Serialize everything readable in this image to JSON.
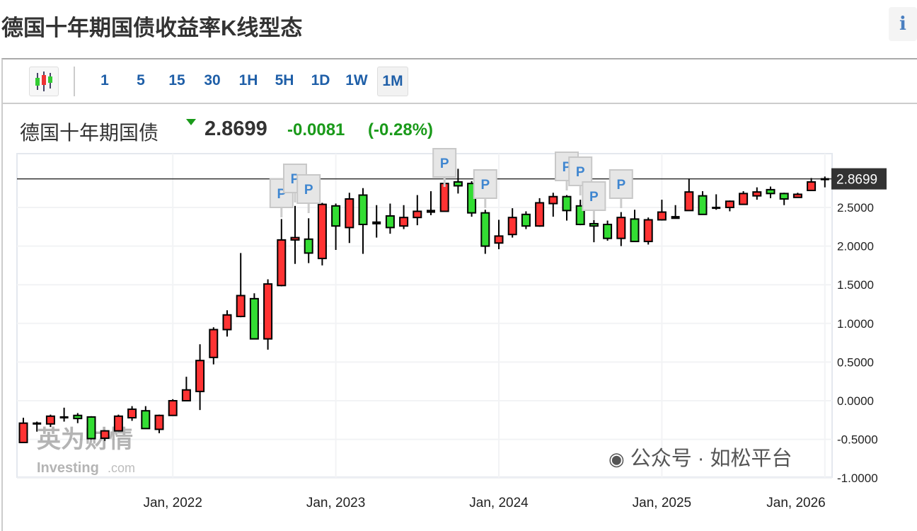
{
  "header": {
    "title": "德国十年期国债收益率K线型态",
    "info_icon": "info-icon"
  },
  "toolbar": {
    "chart_type_icon": "candlestick-icon",
    "timeframes": [
      "1",
      "5",
      "15",
      "30",
      "1H",
      "5H",
      "1D",
      "1W",
      "1M"
    ],
    "active_timeframe": "1M"
  },
  "quote": {
    "name": "德国十年期国债",
    "direction_icon": "triangle-down-icon",
    "price": "2.8699",
    "change": "-0.0081",
    "change_pct": "(-0.28%)"
  },
  "watermark": {
    "logo": "英为财情 Investing.com",
    "overlay_text": "公众号 · 如松平台"
  },
  "colors": {
    "up": "#ff3333",
    "down": "#33dd33",
    "change": "#1a9a1a",
    "timeframe": "#1f5fa8",
    "price_tag": "#333333"
  },
  "chart_data": {
    "type": "candlestick",
    "interval": "monthly",
    "ylim": [
      -1.0,
      3.2
    ],
    "yticks": [
      "2.5000",
      "2.0000",
      "1.5000",
      "1.0000",
      "0.5000",
      "0.0000",
      "-0.5000",
      "-1.0000"
    ],
    "ytick_values": [
      2.5,
      2.0,
      1.5,
      1.0,
      0.5,
      0.0,
      -0.5,
      -1.0
    ],
    "xticks": [
      "Jan, 2022",
      "Jan, 2023",
      "Jan, 2024",
      "Jan, 2025",
      "Jan, 2026"
    ],
    "xtick_months": [
      "2022-01",
      "2023-01",
      "2024-01",
      "2025-01",
      "2026-01"
    ],
    "grid": true,
    "last_price": 2.8699,
    "last_price_label": "2.8699",
    "marker_label": "P",
    "marker_months": [
      "2022-09",
      "2022-10",
      "2022-11",
      "2023-09",
      "2023-12",
      "2024-06",
      "2024-07",
      "2024-08",
      "2024-10"
    ],
    "months": [
      "2021-02",
      "2021-03",
      "2021-04",
      "2021-05",
      "2021-06",
      "2021-07",
      "2021-08",
      "2021-09",
      "2021-10",
      "2021-11",
      "2021-12",
      "2022-01",
      "2022-02",
      "2022-03",
      "2022-04",
      "2022-05",
      "2022-06",
      "2022-07",
      "2022-08",
      "2022-09",
      "2022-10",
      "2022-11",
      "2022-12",
      "2023-01",
      "2023-02",
      "2023-03",
      "2023-04",
      "2023-05",
      "2023-06",
      "2023-07",
      "2023-08",
      "2023-09",
      "2023-10",
      "2023-11",
      "2023-12",
      "2024-01",
      "2024-02",
      "2024-03",
      "2024-04",
      "2024-05",
      "2024-06",
      "2024-07",
      "2024-08",
      "2024-09",
      "2024-10",
      "2024-11",
      "2024-12",
      "2025-01",
      "2025-02",
      "2025-03",
      "2025-04",
      "2025-05",
      "2025-06",
      "2025-07",
      "2025-08",
      "2025-09",
      "2025-10",
      "2025-11",
      "2025-12",
      "2026-01"
    ],
    "ohlc": [
      [
        -0.54,
        -0.22,
        -0.54,
        -0.29
      ],
      [
        -0.29,
        -0.27,
        -0.4,
        -0.3
      ],
      [
        -0.3,
        -0.18,
        -0.34,
        -0.2
      ],
      [
        -0.21,
        -0.09,
        -0.27,
        -0.22
      ],
      [
        -0.19,
        -0.16,
        -0.29,
        -0.23
      ],
      [
        -0.21,
        -0.2,
        -0.5,
        -0.49
      ],
      [
        -0.485,
        -0.38,
        -0.52,
        -0.39
      ],
      [
        -0.39,
        -0.18,
        -0.39,
        -0.2
      ],
      [
        -0.22,
        -0.07,
        -0.26,
        -0.11
      ],
      [
        -0.13,
        -0.07,
        -0.36,
        -0.36
      ],
      [
        -0.37,
        -0.18,
        -0.42,
        -0.19
      ],
      [
        -0.19,
        0.02,
        -0.19,
        0.0
      ],
      [
        0.0,
        0.31,
        0.0,
        0.14
      ],
      [
        0.12,
        0.73,
        -0.12,
        0.52
      ],
      [
        0.56,
        0.95,
        0.47,
        0.92
      ],
      [
        0.92,
        1.17,
        0.83,
        1.11
      ],
      [
        1.09,
        1.91,
        1.08,
        1.36
      ],
      [
        1.32,
        1.39,
        0.8,
        0.8
      ],
      [
        0.8,
        1.57,
        0.66,
        1.51
      ],
      [
        1.49,
        2.35,
        1.48,
        2.08
      ],
      [
        2.08,
        2.52,
        1.77,
        2.11
      ],
      [
        2.09,
        2.36,
        1.78,
        1.91
      ],
      [
        1.84,
        2.56,
        1.75,
        2.54
      ],
      [
        2.52,
        2.55,
        1.95,
        2.26
      ],
      [
        2.24,
        2.69,
        2.04,
        2.61
      ],
      [
        2.66,
        2.75,
        1.9,
        2.28
      ],
      [
        2.29,
        2.53,
        2.11,
        2.31
      ],
      [
        2.39,
        2.55,
        2.16,
        2.24
      ],
      [
        2.26,
        2.53,
        2.22,
        2.37
      ],
      [
        2.37,
        2.66,
        2.27,
        2.45
      ],
      [
        2.44,
        2.71,
        2.4,
        2.46
      ],
      [
        2.45,
        2.97,
        2.45,
        2.81
      ],
      [
        2.83,
        3.0,
        2.68,
        2.78
      ],
      [
        2.81,
        2.84,
        2.38,
        2.43
      ],
      [
        2.43,
        2.47,
        1.9,
        2.0
      ],
      [
        2.04,
        2.34,
        1.96,
        2.13
      ],
      [
        2.15,
        2.49,
        2.11,
        2.37
      ],
      [
        2.41,
        2.45,
        2.22,
        2.26
      ],
      [
        2.26,
        2.62,
        2.25,
        2.56
      ],
      [
        2.55,
        2.69,
        2.38,
        2.64
      ],
      [
        2.64,
        2.66,
        2.33,
        2.46
      ],
      [
        2.52,
        2.6,
        2.27,
        2.28
      ],
      [
        2.29,
        2.39,
        2.05,
        2.26
      ],
      [
        2.28,
        2.33,
        2.07,
        2.1
      ],
      [
        2.1,
        2.44,
        2.0,
        2.37
      ],
      [
        2.35,
        2.47,
        2.06,
        2.06
      ],
      [
        2.06,
        2.37,
        2.02,
        2.34
      ],
      [
        2.34,
        2.6,
        2.33,
        2.44
      ],
      [
        2.36,
        2.53,
        2.36,
        2.38
      ],
      [
        2.46,
        2.87,
        2.46,
        2.7
      ],
      [
        2.65,
        2.71,
        2.41,
        2.41
      ],
      [
        2.5,
        2.67,
        2.47,
        2.49
      ],
      [
        2.5,
        2.59,
        2.45,
        2.58
      ],
      [
        2.54,
        2.71,
        2.54,
        2.68
      ],
      [
        2.65,
        2.76,
        2.6,
        2.7
      ],
      [
        2.73,
        2.77,
        2.62,
        2.68
      ],
      [
        2.68,
        2.69,
        2.53,
        2.61
      ],
      [
        2.63,
        2.69,
        2.63,
        2.67
      ],
      [
        2.72,
        2.88,
        2.72,
        2.83
      ],
      [
        2.87,
        2.9,
        2.76,
        2.8699
      ]
    ]
  }
}
